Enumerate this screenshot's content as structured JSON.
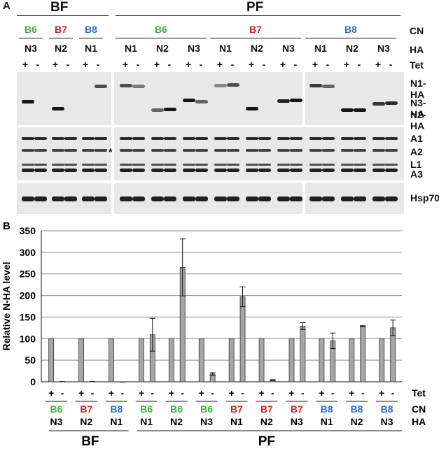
{
  "panelA": {
    "letter": "A",
    "groups": {
      "bf": "BF",
      "pf": "PF"
    },
    "row_labels": {
      "cn": "CN",
      "ha": "HA",
      "tet": "Tet"
    },
    "bf_lanes": [
      {
        "cn": "B6",
        "ha": "N3"
      },
      {
        "cn": "B7",
        "ha": "N2"
      },
      {
        "cn": "B8",
        "ha": "N1"
      }
    ],
    "pf_groups": [
      {
        "cn": "B6",
        "ha": [
          "N1",
          "N2",
          "N3"
        ]
      },
      {
        "cn": "B7",
        "ha": [
          "N1",
          "N2",
          "N3"
        ]
      },
      {
        "cn": "B8",
        "ha": [
          "N1",
          "N2",
          "N3"
        ]
      }
    ],
    "tet_signs": [
      "+",
      "-"
    ],
    "blot_labels": {
      "n1": "N1-HA",
      "n3": "N3-HA",
      "n2": "N2-HA",
      "a1": "A1",
      "a2": "A2",
      "l1": "L1",
      "a3": "A3",
      "hsp": "Hsp70",
      "star": "*"
    }
  },
  "colors": {
    "B6": "#3cb43c",
    "B7": "#d42020",
    "B8": "#2a6fd4"
  },
  "chart_data": {
    "type": "bar",
    "panel_letter": "B",
    "ylabel": "Relative N-HA level",
    "ylim": [
      0,
      350
    ],
    "yticks": [
      0,
      50,
      100,
      150,
      200,
      250,
      300,
      350
    ],
    "grid": true,
    "bar_color": "#a6a6a6",
    "categories": [
      {
        "cn": "B6",
        "ha": "N3",
        "group": "BF"
      },
      {
        "cn": "B7",
        "ha": "N2",
        "group": "BF"
      },
      {
        "cn": "B8",
        "ha": "N1",
        "group": "BF"
      },
      {
        "cn": "B6",
        "ha": "N1",
        "group": "PF"
      },
      {
        "cn": "B6",
        "ha": "N2",
        "group": "PF"
      },
      {
        "cn": "B6",
        "ha": "N3",
        "group": "PF"
      },
      {
        "cn": "B7",
        "ha": "N1",
        "group": "PF"
      },
      {
        "cn": "B7",
        "ha": "N2",
        "group": "PF"
      },
      {
        "cn": "B7",
        "ha": "N3",
        "group": "PF"
      },
      {
        "cn": "B8",
        "ha": "N1",
        "group": "PF"
      },
      {
        "cn": "B8",
        "ha": "N2",
        "group": "PF"
      },
      {
        "cn": "B8",
        "ha": "N3",
        "group": "PF"
      }
    ],
    "series": [
      {
        "tet": "+",
        "values": [
          100,
          100,
          100,
          100,
          100,
          100,
          100,
          100,
          100,
          100,
          100,
          100
        ],
        "errors": [
          0,
          0,
          0,
          0,
          0,
          0,
          0,
          0,
          0,
          0,
          0,
          0
        ]
      },
      {
        "tet": "-",
        "values": [
          1,
          1,
          0,
          109,
          265,
          18,
          197,
          4,
          129,
          95,
          129,
          125
        ],
        "errors": [
          0,
          0,
          0,
          38,
          66,
          3,
          23,
          1,
          8,
          18,
          1,
          18
        ]
      }
    ],
    "x_row_labels": {
      "tet": "Tet",
      "cn": "CN",
      "ha": "HA"
    },
    "group_labels": {
      "bf": "BF",
      "pf": "PF"
    }
  }
}
